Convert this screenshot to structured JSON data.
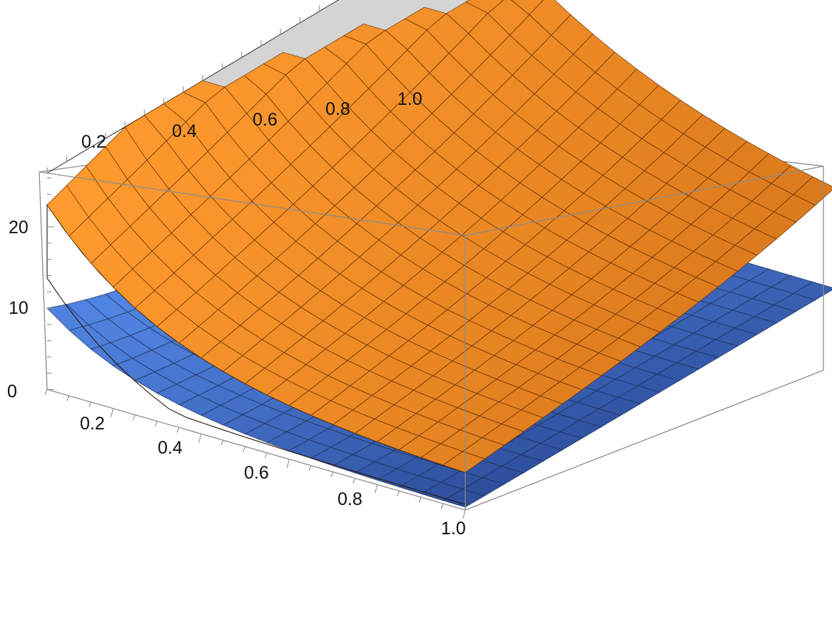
{
  "chart_data": {
    "type": "surface3d",
    "x_ticks": [
      "0.2",
      "0.4",
      "0.6",
      "0.8",
      "1.0"
    ],
    "y_ticks": [
      "0.2",
      "0.4",
      "0.6",
      "0.8",
      "1.0"
    ],
    "z_ticks": [
      "0",
      "10",
      "20"
    ],
    "xlim": [
      0.05,
      1.0
    ],
    "ylim": [
      0.05,
      1.0
    ],
    "zlim": [
      0,
      26.6
    ],
    "series": [
      {
        "surface": "blue",
        "color": "#3d6fd0",
        "points": [
          {
            "x": 0.05,
            "y": 0.05,
            "z": 10.0
          },
          {
            "x": 0.05,
            "y": 0.5,
            "z": 3.4
          },
          {
            "x": 0.05,
            "y": 1.0,
            "z": 2.0
          },
          {
            "x": 1.0,
            "y": 0.05,
            "z": 0.2
          },
          {
            "x": 1.0,
            "y": 1.0,
            "z": 0.2
          }
        ]
      },
      {
        "surface": "orange",
        "color": "#f08a24",
        "points": [
          {
            "x": 0.05,
            "y": 0.05,
            "z": 26.6
          },
          {
            "x": 0.05,
            "y": 1.0,
            "z": 26.6
          },
          {
            "x": 0.5,
            "y": 0.05,
            "z": 21.5
          },
          {
            "x": 0.5,
            "y": 1.0,
            "z": 26.6
          },
          {
            "x": 1.0,
            "y": 0.05,
            "z": 3.5
          },
          {
            "x": 1.0,
            "y": 0.5,
            "z": 6.5
          },
          {
            "x": 1.0,
            "y": 1.0,
            "z": 7.5
          }
        ]
      }
    ],
    "clipped_region_color": "#d4d4d4"
  }
}
